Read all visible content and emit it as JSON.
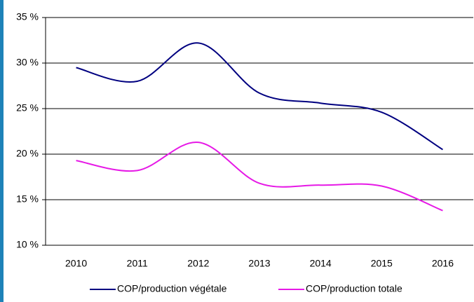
{
  "chart_data": {
    "type": "line",
    "categories": [
      "2010",
      "2011",
      "2012",
      "2013",
      "2014",
      "2015",
      "2016"
    ],
    "series": [
      {
        "name": "COP/production végétale",
        "color": "#000080",
        "values": [
          29.5,
          28.0,
          32.2,
          26.7,
          25.6,
          24.6,
          20.5
        ]
      },
      {
        "name": "COP/production totale",
        "color": "#e619e6",
        "values": [
          19.3,
          18.2,
          21.3,
          16.8,
          16.6,
          16.5,
          13.8
        ]
      }
    ],
    "ylim": [
      10,
      35
    ],
    "yticks": [
      {
        "value": 10,
        "label": "10 %"
      },
      {
        "value": 15,
        "label": "15 %"
      },
      {
        "value": 20,
        "label": "20 %"
      },
      {
        "value": 25,
        "label": "25 %"
      },
      {
        "value": 30,
        "label": "30 %"
      },
      {
        "value": 35,
        "label": "35 %"
      }
    ],
    "grid": true,
    "smooth": true,
    "legend": "bottom"
  }
}
